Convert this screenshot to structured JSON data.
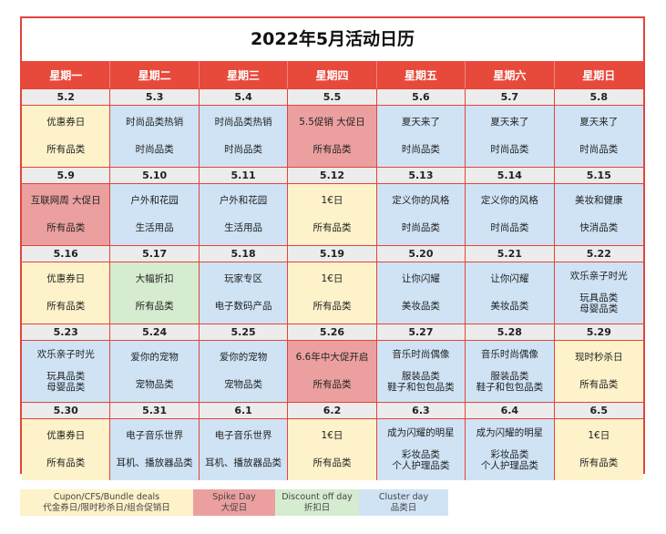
{
  "title": "2022年5月活动日历",
  "weekdays": [
    "星期一",
    "星期二",
    "星期三",
    "星期四",
    "星期五",
    "星期六",
    "星期日"
  ],
  "colors": {
    "coupon": "#fdf2c9",
    "spike": "#eba09f",
    "discount": "#d6ecd0",
    "cluster": "#cfe3f5",
    "accent": "#e74a3b"
  },
  "weeks": [
    {
      "dates": [
        "5.2",
        "5.3",
        "5.4",
        "5.5",
        "5.6",
        "5.7",
        "5.8"
      ],
      "cells": [
        {
          "type": "coupon",
          "l1": "优惠券日",
          "l2": "所有品类"
        },
        {
          "type": "cluster",
          "l1": "时尚品类热销",
          "l2": "时尚品类"
        },
        {
          "type": "cluster",
          "l1": "时尚品类热销",
          "l2": "时尚品类"
        },
        {
          "type": "spike",
          "l1": "5.5促销 大促日",
          "l2": "所有品类"
        },
        {
          "type": "cluster",
          "l1": "夏天来了",
          "l2": "时尚品类"
        },
        {
          "type": "cluster",
          "l1": "夏天来了",
          "l2": "时尚品类"
        },
        {
          "type": "cluster",
          "l1": "夏天来了",
          "l2": "时尚品类"
        }
      ]
    },
    {
      "dates": [
        "5.9",
        "5.10",
        "5.11",
        "5.12",
        "5.13",
        "5.14",
        "5.15"
      ],
      "cells": [
        {
          "type": "spike",
          "l1": "互联网周 大促日",
          "l2": "所有品类"
        },
        {
          "type": "cluster",
          "l1": "户外和花园",
          "l2": "生活用品"
        },
        {
          "type": "cluster",
          "l1": "户外和花园",
          "l2": "生活用品"
        },
        {
          "type": "coupon",
          "l1": "1€日",
          "l2": "所有品类"
        },
        {
          "type": "cluster",
          "l1": "定义你的风格",
          "l2": "时尚品类"
        },
        {
          "type": "cluster",
          "l1": "定义你的风格",
          "l2": "时尚品类"
        },
        {
          "type": "cluster",
          "l1": "美妆和健康",
          "l2": "快消品类"
        }
      ]
    },
    {
      "dates": [
        "5.16",
        "5.17",
        "5.18",
        "5.19",
        "5.20",
        "5.21",
        "5.22"
      ],
      "cells": [
        {
          "type": "coupon",
          "l1": "优惠券日",
          "l2": "所有品类"
        },
        {
          "type": "discount",
          "l1": "大幅折扣",
          "l2": "所有品类"
        },
        {
          "type": "cluster",
          "l1": "玩家专区",
          "l2": "电子数码产品"
        },
        {
          "type": "coupon",
          "l1": "1€日",
          "l2": "所有品类"
        },
        {
          "type": "cluster",
          "l1": "让你闪耀",
          "l2": "美妆品类"
        },
        {
          "type": "cluster",
          "l1": "让你闪耀",
          "l2": "美妆品类"
        },
        {
          "type": "cluster",
          "l1": "欢乐亲子时光",
          "l2": "玩具品类\n母婴品类"
        }
      ]
    },
    {
      "dates": [
        "5.23",
        "5.24",
        "5.25",
        "5.26",
        "5.27",
        "5.28",
        "5.29"
      ],
      "cells": [
        {
          "type": "cluster",
          "l1": "欢乐亲子时光",
          "l2": "玩具品类\n母婴品类"
        },
        {
          "type": "cluster",
          "l1": "爱你的宠物",
          "l2": "宠物品类"
        },
        {
          "type": "cluster",
          "l1": "爱你的宠物",
          "l2": "宠物品类"
        },
        {
          "type": "spike",
          "l1": "6.6年中大促开启",
          "l2": "所有品类"
        },
        {
          "type": "cluster",
          "l1": "音乐时尚偶像",
          "l2": "服装品类\n鞋子和包包品类"
        },
        {
          "type": "cluster",
          "l1": "音乐时尚偶像",
          "l2": "服装品类\n鞋子和包包品类"
        },
        {
          "type": "coupon",
          "l1": "现时秒杀日",
          "l2": "所有品类"
        }
      ]
    },
    {
      "dates": [
        "5.30",
        "5.31",
        "6.1",
        "6.2",
        "6.3",
        "6.4",
        "6.5"
      ],
      "cells": [
        {
          "type": "coupon",
          "l1": "优惠券日",
          "l2": "所有品类"
        },
        {
          "type": "cluster",
          "l1": "电子音乐世界",
          "l2": "耳机、播放器品类"
        },
        {
          "type": "cluster",
          "l1": "电子音乐世界",
          "l2": "耳机、播放器品类"
        },
        {
          "type": "coupon",
          "l1": "1€日",
          "l2": "所有品类"
        },
        {
          "type": "cluster",
          "l1": "成为闪耀的明星",
          "l2": "彩妆品类\n个人护理品类"
        },
        {
          "type": "cluster",
          "l1": "成为闪耀的明星",
          "l2": "彩妆品类\n个人护理品类"
        },
        {
          "type": "coupon",
          "l1": "1€日",
          "l2": "所有品类"
        }
      ]
    }
  ],
  "legend": {
    "coupon": {
      "en": "Cupon/CFS/Bundle deals",
      "zh": "代金券日/限时秒杀日/组合促销日"
    },
    "spike": {
      "en": "Spike Day",
      "zh": "大促日"
    },
    "discount": {
      "en": "Discount off day",
      "zh": "折扣日"
    },
    "cluster": {
      "en": "Cluster day",
      "zh": "品类日"
    }
  }
}
